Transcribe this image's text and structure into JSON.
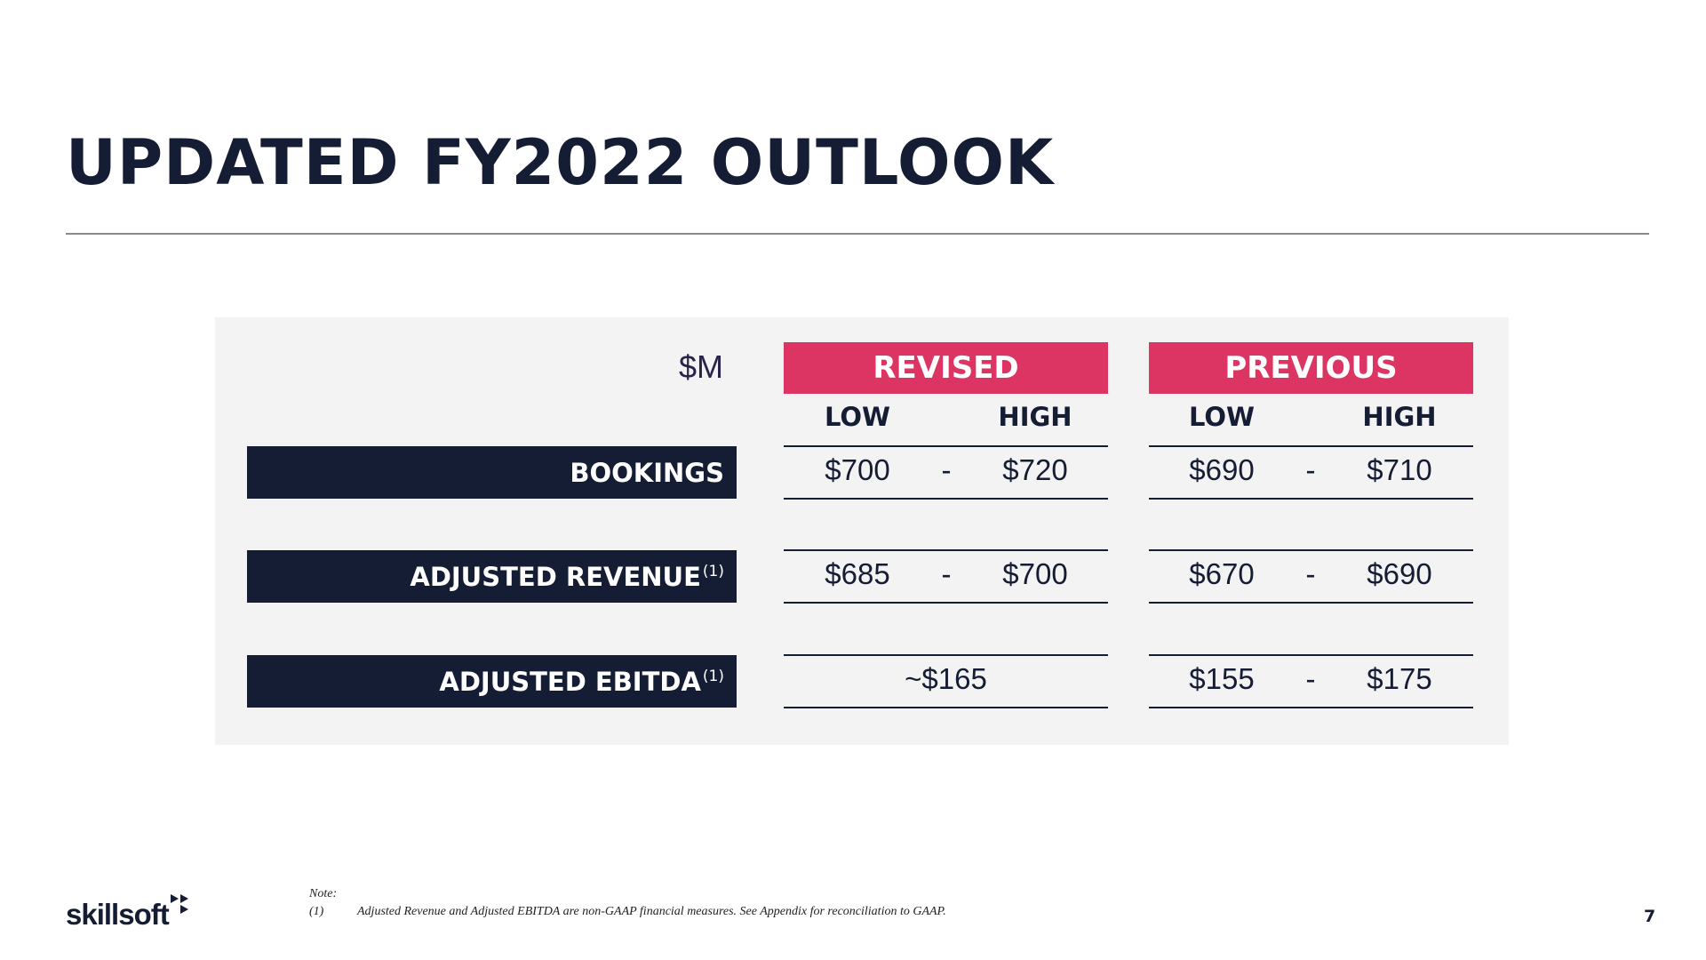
{
  "header": {
    "title": "UPDATED FY2022 OUTLOOK"
  },
  "table": {
    "unit": "$M",
    "revised_label": "REVISED",
    "previous_label": "PREVIOUS",
    "low_label": "LOW",
    "high_label": "HIGH",
    "dash": "-",
    "rows": [
      {
        "label": "BOOKINGS",
        "footnote": "",
        "revised_low": "$700",
        "revised_high": "$720",
        "previous_low": "$690",
        "previous_high": "$710"
      },
      {
        "label": "ADJUSTED REVENUE",
        "footnote": "(1)",
        "revised_low": "$685",
        "revised_high": "$700",
        "previous_low": "$670",
        "previous_high": "$690"
      },
      {
        "label": "ADJUSTED EBITDA",
        "footnote": "(1)",
        "revised_single": "~$165",
        "previous_low": "$155",
        "previous_high": "$175"
      }
    ]
  },
  "footnote": {
    "note_label": "Note:",
    "number": "(1)",
    "text": "Adjusted Revenue and Adjusted EBITDA are non-GAAP financial measures.  See Appendix for reconciliation to GAAP."
  },
  "footer": {
    "logo_text": "skillsoft",
    "page_number": "7"
  },
  "colors": {
    "navy": "#151d35",
    "accent": "#dc3564",
    "panel": "#f3f3f3"
  }
}
